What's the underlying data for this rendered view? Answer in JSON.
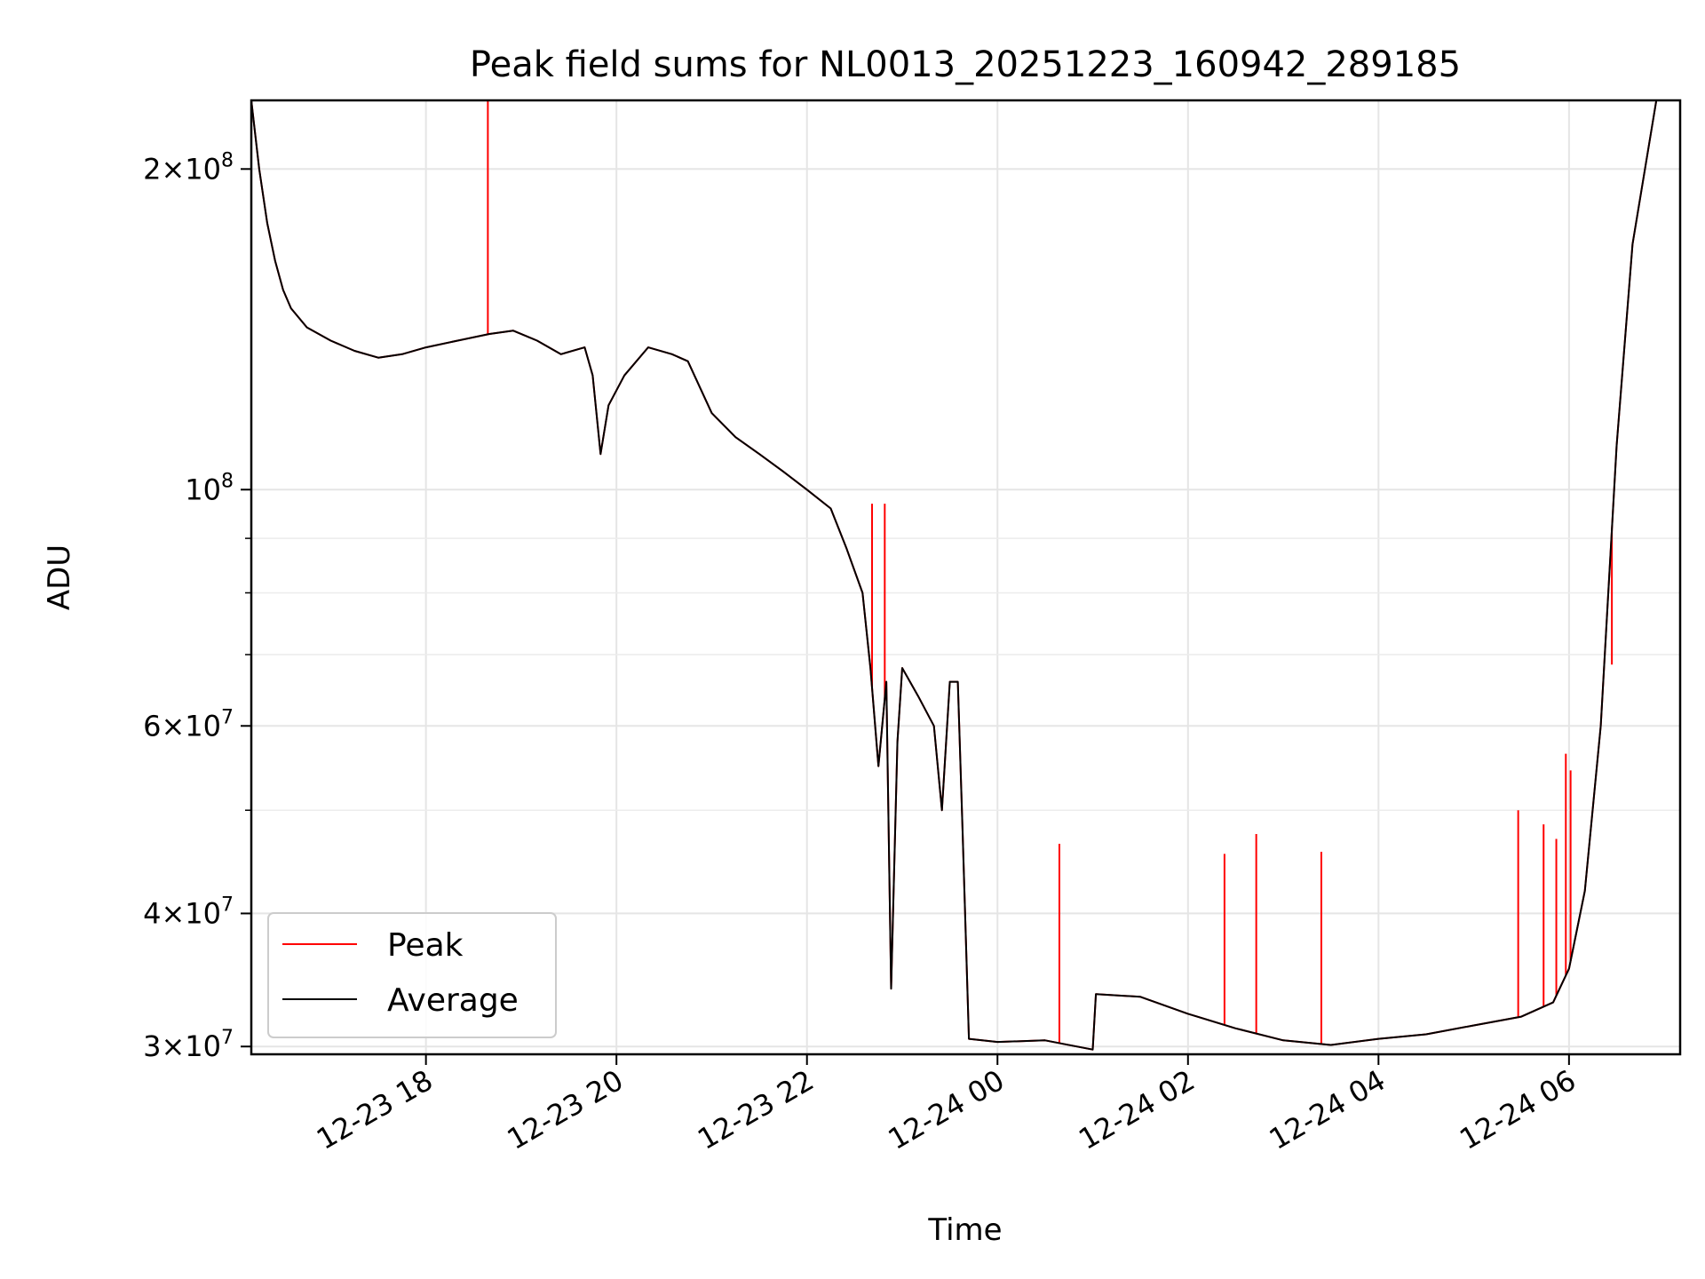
{
  "chart_data": {
    "type": "line",
    "title": "Peak field sums for NL0013_20251223_160942_289185",
    "xlabel": "Time",
    "ylabel": "ADU",
    "yscale": "log",
    "ylim": [
      29500000,
      232000000
    ],
    "xlim": [
      "12-23 16:10",
      "12-24 07:10"
    ],
    "grid": true,
    "legend_position": "lower-left",
    "x_ticks": [
      {
        "t": "12-23 18:00",
        "label": "12-23 18"
      },
      {
        "t": "12-23 20:00",
        "label": "12-23 20"
      },
      {
        "t": "12-23 22:00",
        "label": "12-23 22"
      },
      {
        "t": "12-24 00:00",
        "label": "12-24 00"
      },
      {
        "t": "12-24 02:00",
        "label": "12-24 02"
      },
      {
        "t": "12-24 04:00",
        "label": "12-24 04"
      },
      {
        "t": "12-24 06:00",
        "label": "12-24 06"
      }
    ],
    "y_ticks": [
      {
        "v": 30000000,
        "mant": "3",
        "exp": "7"
      },
      {
        "v": 40000000,
        "mant": "4",
        "exp": "7"
      },
      {
        "v": 60000000,
        "mant": "6",
        "exp": "7"
      },
      {
        "v": 100000000,
        "mant": "",
        "exp": "8"
      },
      {
        "v": 200000000,
        "mant": "2",
        "exp": "8"
      }
    ],
    "y_minor_ticks": [
      50000000,
      70000000,
      80000000,
      90000000
    ],
    "series": [
      {
        "name": "Average",
        "color": "#000000",
        "points": [
          [
            "12-23 16:10",
            232000000
          ],
          [
            "12-23 16:15",
            200000000
          ],
          [
            "12-23 16:20",
            178000000
          ],
          [
            "12-23 16:25",
            164000000
          ],
          [
            "12-23 16:30",
            154000000
          ],
          [
            "12-23 16:35",
            148000000
          ],
          [
            "12-23 16:45",
            142000000
          ],
          [
            "12-23 17:00",
            138000000
          ],
          [
            "12-23 17:15",
            135000000
          ],
          [
            "12-23 17:30",
            133000000
          ],
          [
            "12-23 17:45",
            134000000
          ],
          [
            "12-23 18:00",
            136000000
          ],
          [
            "12-23 18:20",
            138000000
          ],
          [
            "12-23 18:40",
            140000000
          ],
          [
            "12-23 18:55",
            141000000
          ],
          [
            "12-23 19:10",
            138000000
          ],
          [
            "12-23 19:25",
            134000000
          ],
          [
            "12-23 19:40",
            136000000
          ],
          [
            "12-23 19:45",
            128000000
          ],
          [
            "12-23 19:50",
            108000000
          ],
          [
            "12-23 19:55",
            120000000
          ],
          [
            "12-23 20:05",
            128000000
          ],
          [
            "12-23 20:20",
            136000000
          ],
          [
            "12-23 20:35",
            134000000
          ],
          [
            "12-23 20:45",
            132000000
          ],
          [
            "12-23 21:00",
            118000000
          ],
          [
            "12-23 21:15",
            112000000
          ],
          [
            "12-23 21:30",
            108000000
          ],
          [
            "12-23 21:45",
            104000000
          ],
          [
            "12-23 22:00",
            100000000
          ],
          [
            "12-23 22:15",
            96000000
          ],
          [
            "12-23 22:25",
            88000000
          ],
          [
            "12-23 22:35",
            80000000
          ],
          [
            "12-23 22:40",
            68000000
          ],
          [
            "12-23 22:45",
            55000000
          ],
          [
            "12-23 22:50",
            66000000
          ],
          [
            "12-23 22:53",
            34000000
          ],
          [
            "12-23 22:57",
            58000000
          ],
          [
            "12-23 23:00",
            68000000
          ],
          [
            "12-23 23:10",
            64000000
          ],
          [
            "12-23 23:20",
            60000000
          ],
          [
            "12-23 23:25",
            50000000
          ],
          [
            "12-23 23:30",
            66000000
          ],
          [
            "12-23 23:35",
            66000000
          ],
          [
            "12-23 23:38",
            48000000
          ],
          [
            "12-23 23:42",
            30500000
          ],
          [
            "12-24 00:00",
            30300000
          ],
          [
            "12-24 00:30",
            30400000
          ],
          [
            "12-24 00:40",
            30200000
          ],
          [
            "12-24 01:00",
            29800000
          ],
          [
            "12-24 01:02",
            33600000
          ],
          [
            "12-24 01:30",
            33400000
          ],
          [
            "12-24 02:00",
            32200000
          ],
          [
            "12-24 02:30",
            31200000
          ],
          [
            "12-24 03:00",
            30400000
          ],
          [
            "12-24 03:30",
            30100000
          ],
          [
            "12-24 04:00",
            30500000
          ],
          [
            "12-24 04:30",
            30800000
          ],
          [
            "12-24 05:00",
            31400000
          ],
          [
            "12-24 05:30",
            32000000
          ],
          [
            "12-24 05:50",
            33000000
          ],
          [
            "12-24 06:00",
            35500000
          ],
          [
            "12-24 06:10",
            42000000
          ],
          [
            "12-24 06:20",
            60000000
          ],
          [
            "12-24 06:30",
            110000000
          ],
          [
            "12-24 06:40",
            170000000
          ],
          [
            "12-24 06:55",
            232000000
          ]
        ]
      },
      {
        "name": "Peak",
        "color": "#ff0000",
        "points": [
          [
            "12-23 18:39",
            232000000
          ],
          [
            "12-23 22:41",
            97000000
          ],
          [
            "12-23 22:49",
            97000000
          ],
          [
            "12-24 00:39",
            46500000
          ],
          [
            "12-24 02:23",
            45500000
          ],
          [
            "12-24 02:43",
            47500000
          ],
          [
            "12-24 03:24",
            45700000
          ],
          [
            "12-24 05:28",
            50000000
          ],
          [
            "12-24 05:44",
            48500000
          ],
          [
            "12-24 05:52",
            47000000
          ],
          [
            "12-24 05:58",
            56500000
          ],
          [
            "12-24 06:01",
            54500000
          ],
          [
            "12-24 06:27",
            68500000
          ]
        ]
      }
    ]
  }
}
